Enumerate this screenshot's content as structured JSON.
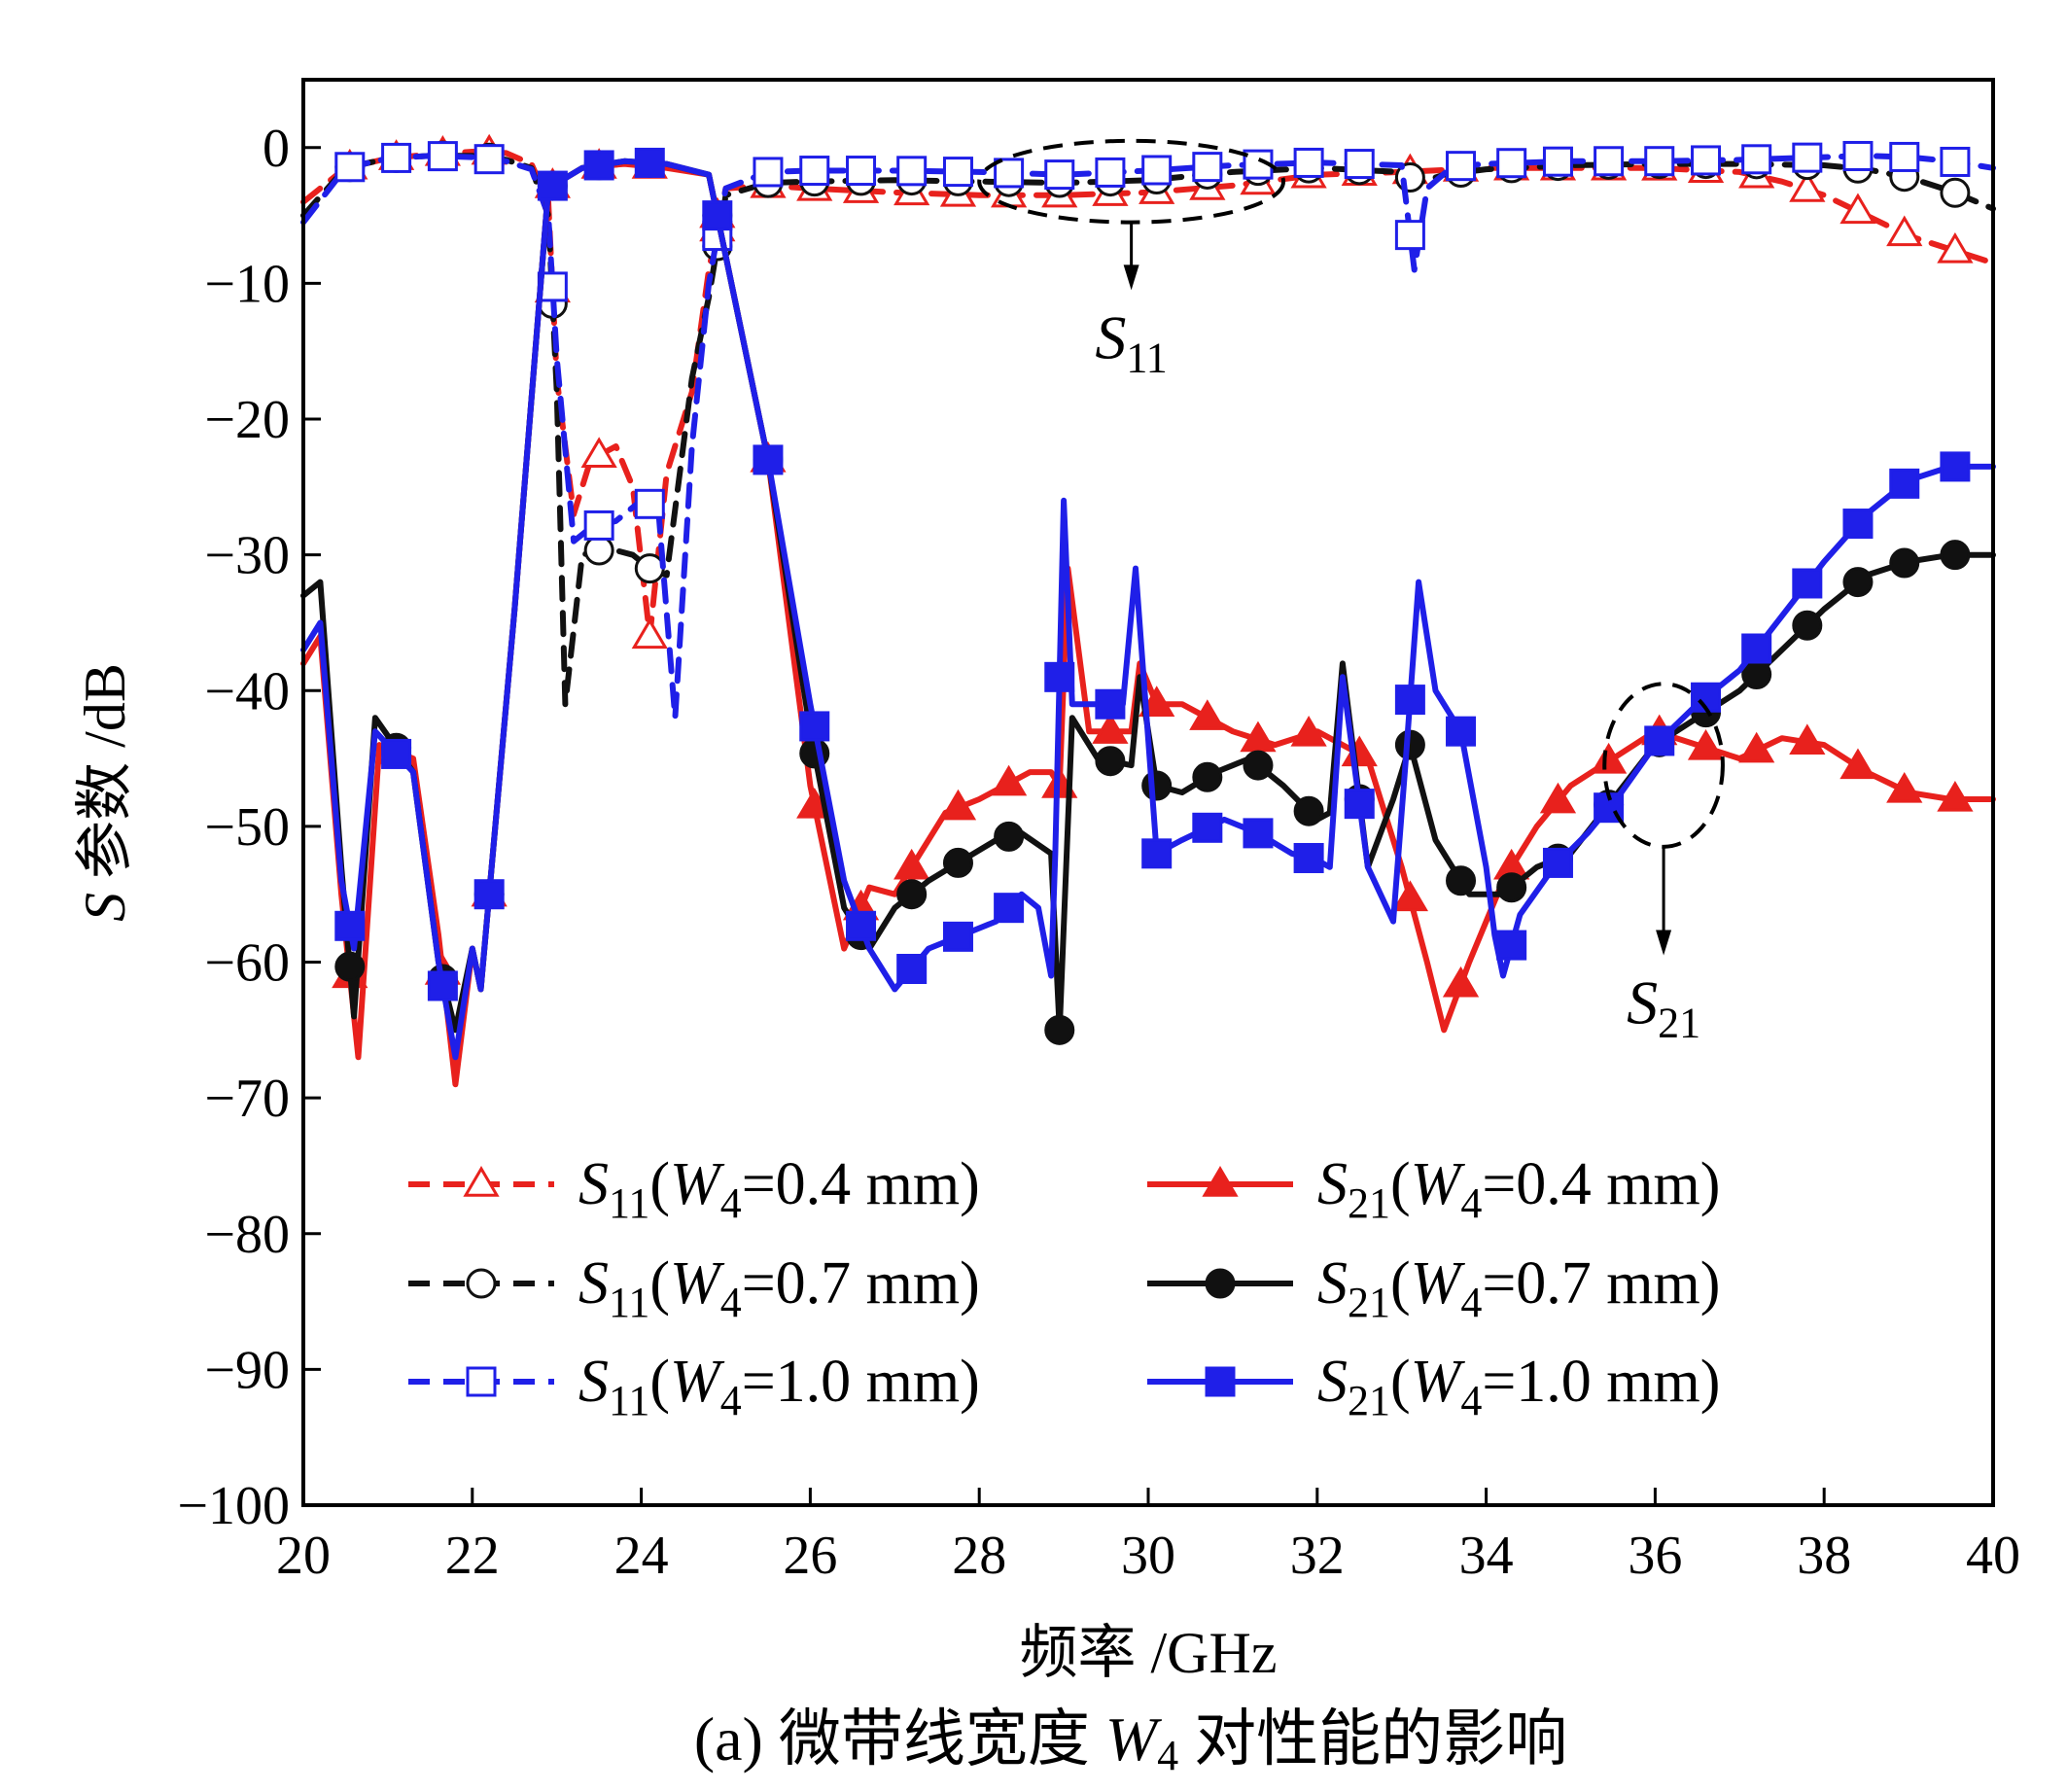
{
  "chart_data": {
    "type": "line",
    "xlabel": "频率 /GHz",
    "ylabel": "参数 /dB",
    "ylabel_prefix": "S",
    "caption": {
      "prefix": "(a) 微带线宽度 ",
      "var": "W",
      "sub": "4",
      "suffix": " 对性能的影响"
    },
    "xlim": [
      20,
      40
    ],
    "ylim": [
      -100,
      5
    ],
    "x_ticks": [
      20,
      22,
      24,
      26,
      28,
      30,
      32,
      34,
      36,
      38,
      40
    ],
    "y_ticks": [
      0,
      -10,
      -20,
      -30,
      -40,
      -50,
      -60,
      -70,
      -80,
      -90,
      -100
    ],
    "x_tick_labels": [
      "20",
      "22",
      "24",
      "26",
      "28",
      "30",
      "32",
      "34",
      "36",
      "38",
      "40"
    ],
    "y_tick_labels": [
      "0",
      "−10",
      "−20",
      "−30",
      "−40",
      "−50",
      "−60",
      "−70",
      "−80",
      "−90",
      "−100"
    ],
    "grid": false,
    "legend_position": "lower-center",
    "annotations": [
      {
        "name": "S11-annotation",
        "main": "S",
        "sub": "11",
        "ellipse_center": [
          29.8,
          -2.5
        ],
        "ellipse_radius": [
          1.8,
          3.0
        ],
        "arrow_to": [
          29.8,
          -10.5
        ]
      },
      {
        "name": "S21-annotation",
        "main": "S",
        "sub": "21",
        "ellipse_center": [
          36.1,
          -45.5
        ],
        "ellipse_radius": [
          0.7,
          6.0
        ],
        "arrow_to": [
          36.1,
          -59.5
        ]
      }
    ],
    "series": [
      {
        "name": "S11(W4=0.4 mm)",
        "label": {
          "main": "S",
          "sub1": "11",
          "var": "W",
          "sub2": "4",
          "value": "=0.4 mm"
        },
        "color": "#e8211d",
        "style": "dashed",
        "marker": "triangle-open",
        "x": [
          20.0,
          20.5,
          21.0,
          21.5,
          22.0,
          22.4,
          22.7,
          22.9,
          23.0,
          23.2,
          23.4,
          23.7,
          23.9,
          24.1,
          24.3,
          24.6,
          24.8,
          25.0,
          25.5,
          26.0,
          27.0,
          28.0,
          29.0,
          30.0,
          31.0,
          32.0,
          33.0,
          34.0,
          35.0,
          36.0,
          37.0,
          37.5,
          38.0,
          38.5,
          39.0,
          39.5,
          40.0
        ],
        "y": [
          -4.0,
          -1.5,
          -0.8,
          -0.5,
          -0.3,
          -0.4,
          -1.2,
          -4.0,
          -17.0,
          -27.0,
          -23.0,
          -22.0,
          -25.0,
          -36.0,
          -24.0,
          -18.0,
          -9.0,
          -3.0,
          -2.8,
          -3.0,
          -3.3,
          -3.5,
          -3.5,
          -3.3,
          -2.8,
          -2.0,
          -1.8,
          -1.5,
          -1.5,
          -1.5,
          -1.8,
          -2.5,
          -3.5,
          -5.0,
          -6.5,
          -7.5,
          -8.5
        ]
      },
      {
        "name": "S11(W4=0.7 mm)",
        "label": {
          "main": "S",
          "sub1": "11",
          "var": "W",
          "sub2": "4",
          "value": "=0.7 mm"
        },
        "color": "#111111",
        "style": "dashed",
        "marker": "circle-open",
        "x": [
          20.0,
          20.5,
          21.0,
          21.5,
          22.0,
          22.4,
          22.7,
          22.9,
          23.0,
          23.1,
          23.3,
          23.6,
          23.9,
          24.1,
          24.3,
          24.6,
          24.8,
          25.0,
          25.5,
          26.0,
          27.0,
          28.0,
          29.0,
          30.0,
          31.0,
          32.0,
          33.0,
          33.2,
          33.5,
          34.0,
          35.0,
          36.0,
          37.0,
          38.0,
          38.5,
          39.0,
          39.5,
          40.0
        ],
        "y": [
          -5.0,
          -1.5,
          -0.8,
          -0.6,
          -0.6,
          -0.9,
          -1.5,
          -5.0,
          -18.0,
          -41.0,
          -30.0,
          -29.5,
          -30.0,
          -31.0,
          -31.5,
          -17.0,
          -11.0,
          -3.5,
          -2.6,
          -2.5,
          -2.4,
          -2.5,
          -2.6,
          -2.4,
          -1.8,
          -1.5,
          -1.8,
          -2.6,
          -2.0,
          -1.6,
          -1.3,
          -1.2,
          -1.2,
          -1.3,
          -1.6,
          -2.2,
          -3.2,
          -4.5
        ]
      },
      {
        "name": "S11(W4=1.0 mm)",
        "label": {
          "main": "S",
          "sub1": "11",
          "var": "W",
          "sub2": "4",
          "value": "=1.0 mm"
        },
        "color": "#1f1fe8",
        "style": "dashed",
        "marker": "square-open",
        "x": [
          20.0,
          20.5,
          21.0,
          21.5,
          22.0,
          22.4,
          22.7,
          22.9,
          23.0,
          23.2,
          23.4,
          23.7,
          24.0,
          24.2,
          24.4,
          24.6,
          24.8,
          25.0,
          25.5,
          26.0,
          27.0,
          28.0,
          29.0,
          30.0,
          31.0,
          32.0,
          33.0,
          33.15,
          33.3,
          33.6,
          34.0,
          35.0,
          36.0,
          37.0,
          38.0,
          38.5,
          39.0,
          39.5,
          40.0
        ],
        "y": [
          -5.5,
          -1.5,
          -0.8,
          -0.6,
          -0.7,
          -1.0,
          -1.6,
          -5.0,
          -15.5,
          -29.0,
          -28.0,
          -27.5,
          -26.0,
          -26.5,
          -42.0,
          -22.0,
          -10.0,
          -3.0,
          -1.8,
          -1.7,
          -1.7,
          -1.8,
          -2.0,
          -1.7,
          -1.3,
          -1.1,
          -1.3,
          -9.0,
          -3.0,
          -1.4,
          -1.2,
          -1.0,
          -1.0,
          -0.9,
          -0.7,
          -0.6,
          -0.7,
          -1.0,
          -1.5
        ]
      },
      {
        "name": "S21(W4=0.4 mm)",
        "label": {
          "main": "S",
          "sub1": "21",
          "var": "W",
          "sub2": "4",
          "value": "=0.4 mm"
        },
        "color": "#e8211d",
        "style": "solid",
        "marker": "triangle-filled",
        "x": [
          20.0,
          20.2,
          20.45,
          20.65,
          20.9,
          21.3,
          21.6,
          21.8,
          22.0,
          22.1,
          22.5,
          22.9,
          23.3,
          23.8,
          24.3,
          24.8,
          25.0,
          25.5,
          26.0,
          26.4,
          26.7,
          27.0,
          27.3,
          27.6,
          28.0,
          28.6,
          28.85,
          28.95,
          29.05,
          29.3,
          29.8,
          29.9,
          30.1,
          30.4,
          31.0,
          31.5,
          32.0,
          32.3,
          32.6,
          33.0,
          33.3,
          33.5,
          33.8,
          34.2,
          34.6,
          35.0,
          35.5,
          36.0,
          37.0,
          37.5,
          38.0,
          38.5,
          39.0,
          39.5,
          40.0
        ],
        "y": [
          -38.0,
          -36.0,
          -55.0,
          -67.0,
          -44.0,
          -45.0,
          -58.0,
          -69.0,
          -59.0,
          -62.0,
          -34.0,
          -3.0,
          -1.5,
          -1.2,
          -1.5,
          -2.0,
          -8.0,
          -23.0,
          -47.0,
          -59.0,
          -54.5,
          -55.0,
          -52.0,
          -49.0,
          -48.0,
          -46.0,
          -46.0,
          -47.0,
          -31.0,
          -43.0,
          -43.0,
          -38.0,
          -41.0,
          -41.0,
          -43.0,
          -44.0,
          -43.0,
          -44.0,
          -45.0,
          -53.0,
          -60.0,
          -65.0,
          -60.0,
          -54.0,
          -50.0,
          -47.0,
          -45.0,
          -43.0,
          -45.0,
          -43.5,
          -44.0,
          -46.0,
          -47.5,
          -48.0,
          -48.0
        ]
      },
      {
        "name": "S21(W4=0.7 mm)",
        "label": {
          "main": "S",
          "sub1": "21",
          "var": "W",
          "sub2": "4",
          "value": "=0.7 mm"
        },
        "color": "#111111",
        "style": "solid",
        "marker": "circle-filled",
        "x": [
          20.0,
          20.2,
          20.45,
          20.6,
          20.85,
          21.3,
          21.6,
          21.8,
          22.0,
          22.1,
          22.5,
          22.9,
          23.3,
          23.8,
          24.3,
          24.8,
          25.0,
          25.5,
          26.0,
          26.4,
          26.7,
          27.0,
          27.4,
          27.8,
          28.2,
          28.5,
          28.85,
          28.95,
          29.1,
          29.4,
          29.8,
          29.9,
          30.1,
          30.4,
          30.8,
          31.2,
          31.6,
          32.0,
          32.15,
          32.3,
          32.6,
          32.9,
          33.1,
          33.4,
          33.8,
          34.2,
          34.6,
          35.0,
          35.5,
          36.0,
          36.5,
          37.0,
          37.5,
          38.0,
          38.5,
          39.0,
          39.5,
          40.0
        ],
        "y": [
          -33.0,
          -32.0,
          -53.0,
          -64.0,
          -42.0,
          -46.0,
          -60.0,
          -65.0,
          -59.0,
          -62.0,
          -34.0,
          -3.0,
          -1.5,
          -1.0,
          -1.2,
          -2.0,
          -8.0,
          -23.0,
          -43.0,
          -56.0,
          -59.0,
          -56.0,
          -54.0,
          -52.5,
          -51.0,
          -50.5,
          -52.0,
          -65.0,
          -42.0,
          -45.0,
          -45.5,
          -39.0,
          -47.0,
          -47.5,
          -46.0,
          -45.0,
          -47.0,
          -49.5,
          -49.0,
          -38.0,
          -53.0,
          -48.0,
          -44.0,
          -51.0,
          -55.0,
          -55.0,
          -53.0,
          -52.0,
          -48.0,
          -44.0,
          -42.0,
          -40.0,
          -37.0,
          -34.0,
          -31.5,
          -30.5,
          -30.0,
          -30.0
        ]
      },
      {
        "name": "S21(W4=1.0 mm)",
        "label": {
          "main": "S",
          "sub1": "21",
          "var": "W",
          "sub2": "4",
          "value": "=1.0 mm"
        },
        "color": "#1f1fe8",
        "style": "solid",
        "marker": "square-filled",
        "x": [
          20.0,
          20.2,
          20.45,
          20.6,
          20.85,
          21.3,
          21.6,
          21.8,
          22.0,
          22.1,
          22.5,
          22.9,
          23.3,
          23.8,
          24.3,
          24.8,
          25.0,
          25.5,
          26.0,
          26.4,
          26.7,
          27.0,
          27.4,
          27.8,
          28.2,
          28.5,
          28.7,
          28.85,
          28.9,
          29.0,
          29.1,
          29.4,
          29.7,
          29.85,
          30.1,
          30.4,
          30.9,
          31.3,
          31.7,
          32.0,
          32.15,
          32.3,
          32.6,
          32.9,
          33.05,
          33.2,
          33.4,
          33.7,
          34.0,
          34.1,
          34.2,
          34.4,
          34.8,
          35.2,
          35.6,
          36.0,
          36.5,
          37.0,
          37.5,
          38.0,
          38.5,
          39.0,
          39.5,
          40.0
        ],
        "y": [
          -37.0,
          -35.0,
          -54.0,
          -59.0,
          -43.0,
          -46.0,
          -60.0,
          -67.0,
          -59.0,
          -62.0,
          -34.0,
          -3.0,
          -1.5,
          -1.0,
          -1.2,
          -2.0,
          -8.0,
          -23.0,
          -41.0,
          -54.0,
          -59.0,
          -62.0,
          -59.0,
          -58.0,
          -57.0,
          -55.0,
          -56.0,
          -61.0,
          -52.0,
          -26.0,
          -41.0,
          -41.0,
          -41.0,
          -31.0,
          -52.0,
          -51.0,
          -49.5,
          -50.5,
          -52.0,
          -52.5,
          -53.0,
          -39.0,
          -53.0,
          -57.0,
          -45.0,
          -32.0,
          -40.0,
          -43.0,
          -53.0,
          -58.0,
          -61.0,
          -56.5,
          -53.0,
          -50.5,
          -47.5,
          -44.0,
          -41.0,
          -38.5,
          -34.5,
          -30.5,
          -27.0,
          -24.5,
          -23.5,
          -23.5
        ]
      }
    ]
  }
}
